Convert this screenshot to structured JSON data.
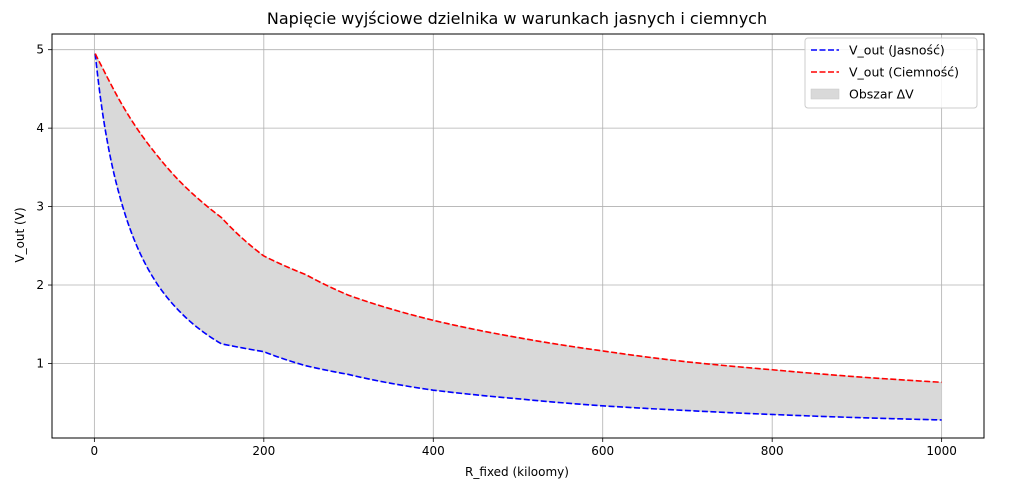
{
  "chart_data": {
    "type": "line",
    "title": "Napięcie wyjściowe dzielnika w warunkach jasnych i ciemnych",
    "xlabel": "R_fixed (kiloomy)",
    "ylabel": "V_out (V)",
    "xlim": [
      -50,
      1050
    ],
    "ylim": [
      0.05,
      5.2
    ],
    "xticks": [
      0,
      200,
      400,
      600,
      800,
      1000
    ],
    "yticks": [
      1,
      2,
      3,
      4,
      5
    ],
    "grid": true,
    "legend_position": "top-right",
    "x": [
      1,
      10,
      20,
      30,
      50,
      75,
      100,
      150,
      200,
      250,
      300,
      400,
      500,
      600,
      700,
      800,
      900,
      1000
    ],
    "series": [
      {
        "name": "V_out (Jasność)",
        "color": "#0000ff",
        "linestyle": "dashed",
        "values": [
          4.95,
          4.17,
          3.57,
          3.13,
          2.5,
          2.0,
          1.67,
          1.25,
          1.15,
          0.97,
          0.86,
          0.66,
          0.55,
          0.46,
          0.4,
          0.35,
          0.31,
          0.28
        ]
      },
      {
        "name": "V_out (Ciemność)",
        "color": "#ff0000",
        "linestyle": "dashed",
        "values": [
          4.95,
          4.76,
          4.55,
          4.35,
          4.0,
          3.64,
          3.33,
          2.86,
          2.37,
          2.13,
          1.87,
          1.55,
          1.33,
          1.16,
          1.02,
          0.92,
          0.83,
          0.76
        ]
      }
    ],
    "fill_between": {
      "name": "Obszar ΔV",
      "color": "#d9d9d9"
    }
  }
}
